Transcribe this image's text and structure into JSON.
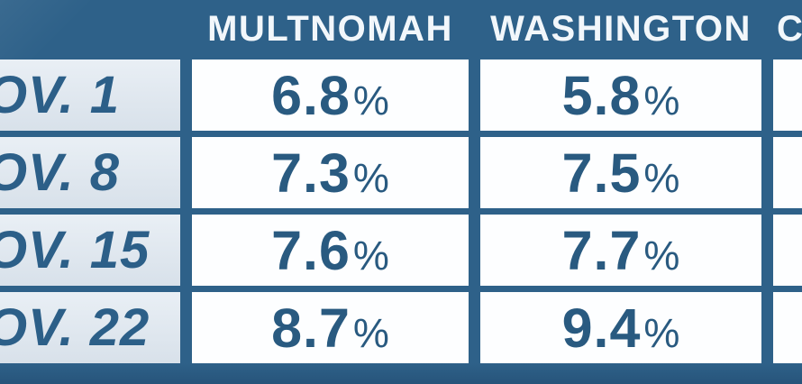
{
  "chart_data": {
    "type": "table",
    "columns": [
      "MULTNOMAH",
      "WASHINGTON",
      "C"
    ],
    "row_labels": [
      "OV. 1",
      "OV. 8",
      "OV. 15",
      "OV. 22"
    ],
    "series": [
      {
        "name": "MULTNOMAH",
        "values": [
          "6.8",
          "7.3",
          "7.6",
          "8.7"
        ]
      },
      {
        "name": "WASHINGTON",
        "values": [
          "5.8",
          "7.5",
          "7.7",
          "9.4"
        ]
      }
    ],
    "unit": "%",
    "layout": "grid table, dark blue gutters, header row on dark background, third column clipped at right edge, row-label column clipped at left edge"
  },
  "colors": {
    "background": "#2e6189",
    "header_text": "#f2f7fb",
    "value_text": "#295a80",
    "label_cell_bg": "#dfe7ee",
    "value_cell_bg": "#fdfeff",
    "bottom_band": "#27547a"
  }
}
